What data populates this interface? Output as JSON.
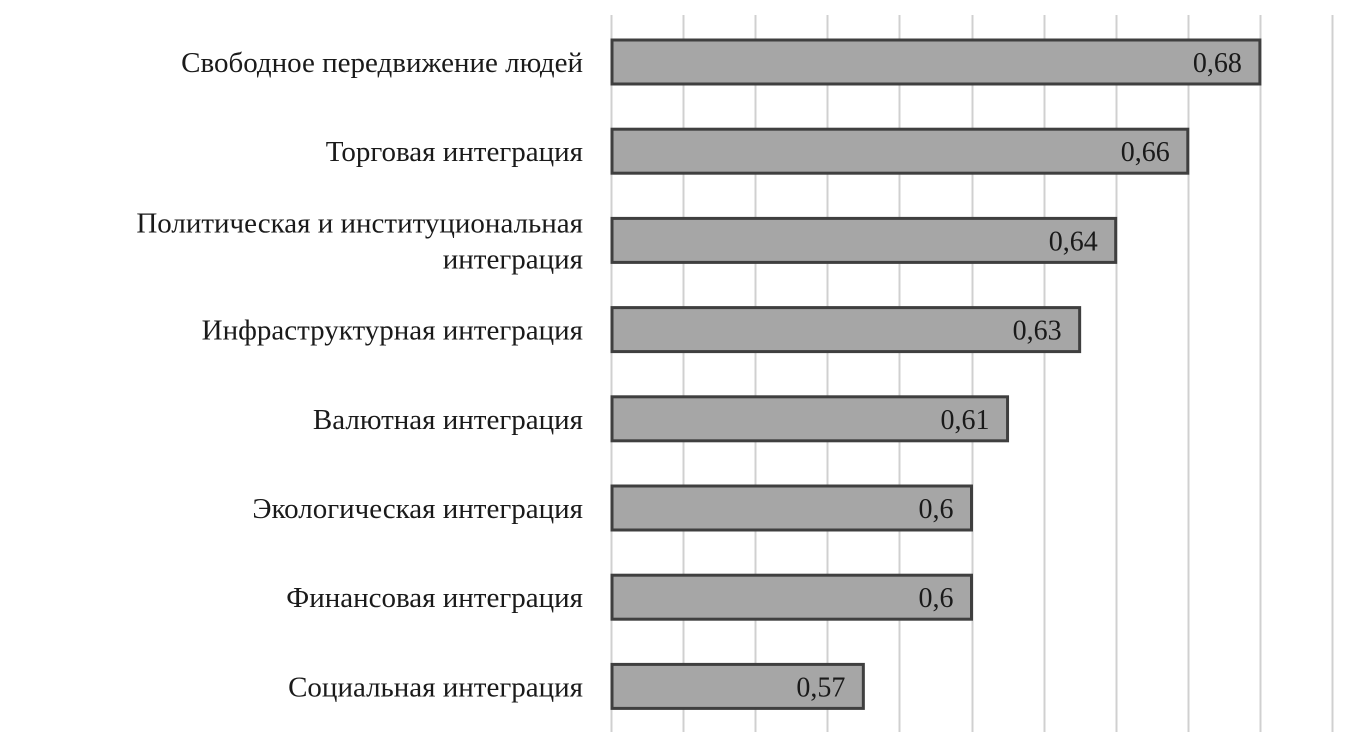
{
  "chart_data": {
    "type": "bar",
    "orientation": "horizontal",
    "categories": [
      [
        "Свободное передвижение людей"
      ],
      [
        "Торговая интеграция"
      ],
      [
        "Политическая и институциональная",
        "интеграция"
      ],
      [
        "Инфраструктурная интеграция"
      ],
      [
        "Валютная интеграция"
      ],
      [
        "Экологическая интеграция"
      ],
      [
        "Финансовая интеграция"
      ],
      [
        "Социальная интеграция"
      ]
    ],
    "values": [
      0.68,
      0.66,
      0.64,
      0.63,
      0.61,
      0.6,
      0.6,
      0.57
    ],
    "value_labels": [
      "0,68",
      "0,66",
      "0,64",
      "0,63",
      "0,61",
      "0,6",
      "0,6",
      "0,57"
    ],
    "title": "",
    "xlabel": "",
    "ylabel": "",
    "xlim": [
      0.5,
      0.7
    ],
    "grid_step": 0.02,
    "grid": true,
    "axis_tick_labels": false,
    "legend": "none",
    "colors": {
      "bar_fill": "#a6a6a6",
      "bar_stroke": "#3f3f3f",
      "grid": "#d0d0d0",
      "text": "#1a1a1a"
    }
  }
}
